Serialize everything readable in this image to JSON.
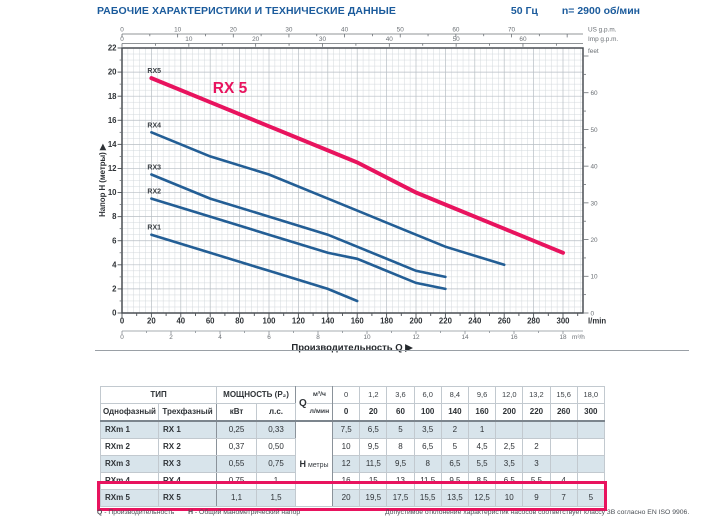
{
  "page": {
    "title": "РАБОЧИЕ ХАРАКТЕРИСТИКИ И ТЕХНИЧЕСКИЕ ДАННЫЕ",
    "frequency": "50 Гц",
    "speed": "n= 2900 об/мин"
  },
  "colors": {
    "accent_pink": "#e8135e",
    "curve_blue": "#235e95",
    "title_blue": "#1b5b9c",
    "row_shade": "#d8e4eb"
  },
  "chart_data": {
    "type": "line",
    "highlight_title": "RX 5",
    "xlabel": "Производительность Q",
    "ylabel": "Напор H (метры)",
    "x_range_lmin": [
      0,
      313
    ],
    "y_range_m": [
      0,
      22
    ],
    "grid": "on",
    "axes": {
      "lmin": {
        "unit": "l/min",
        "ticks": [
          0,
          20,
          40,
          60,
          80,
          100,
          120,
          140,
          160,
          180,
          200,
          220,
          240,
          260,
          280,
          300
        ]
      },
      "m3h": {
        "unit": "m³/h",
        "ticks": [
          0,
          2,
          4,
          6,
          8,
          10,
          12,
          14,
          16,
          18
        ]
      },
      "us_gpm": {
        "unit": "US g.p.m.",
        "ticks": [
          0,
          10,
          20,
          30,
          40,
          50,
          60,
          70
        ]
      },
      "imp_gpm": {
        "unit": "Imp g.p.m.",
        "ticks": [
          0,
          10,
          20,
          30,
          40,
          50,
          60
        ]
      },
      "meters": {
        "ticks": [
          0,
          2,
          4,
          6,
          8,
          10,
          12,
          14,
          16,
          18,
          20,
          22
        ]
      },
      "feet": {
        "unit": "feet",
        "ticks": [
          0,
          10,
          20,
          30,
          40,
          50,
          60
        ]
      }
    },
    "series": [
      {
        "name": "RX1",
        "color": "#235e95",
        "highlighted": false,
        "x": [
          20,
          60,
          100,
          140,
          160
        ],
        "y": [
          6.5,
          5,
          3.5,
          2,
          1
        ]
      },
      {
        "name": "RX2",
        "color": "#235e95",
        "highlighted": false,
        "x": [
          20,
          60,
          100,
          140,
          160,
          200,
          220
        ],
        "y": [
          9.5,
          8,
          6.5,
          5,
          4.5,
          2.5,
          2
        ]
      },
      {
        "name": "RX3",
        "color": "#235e95",
        "highlighted": false,
        "x": [
          20,
          60,
          100,
          140,
          160,
          200,
          220
        ],
        "y": [
          11.5,
          9.5,
          8,
          6.5,
          5.5,
          3.5,
          3
        ]
      },
      {
        "name": "RX4",
        "color": "#235e95",
        "highlighted": false,
        "x": [
          20,
          60,
          100,
          140,
          160,
          200,
          220,
          260
        ],
        "y": [
          15,
          13,
          11.5,
          9.5,
          8.5,
          6.5,
          5.5,
          4
        ]
      },
      {
        "name": "RX5",
        "color": "#e8135e",
        "highlighted": true,
        "x": [
          20,
          60,
          100,
          140,
          160,
          200,
          220,
          260,
          300
        ],
        "y": [
          19.5,
          17.5,
          15.5,
          13.5,
          12.5,
          10,
          9,
          7,
          5
        ]
      }
    ]
  },
  "table": {
    "header": {
      "type_label": "ТИП",
      "single_phase": "Однофазный",
      "three_phase": "Трехфазный",
      "power_label": "МОЩНОСТЬ (P₂)",
      "kw": "кВт",
      "hp": "л.с.",
      "q_label": "Q",
      "m3h_label": "м³/ч",
      "lmin_label": "л/мин",
      "h_label": "H",
      "h_unit": "метры",
      "m3h_values": [
        "0",
        "1,2",
        "3,6",
        "6,0",
        "8,4",
        "9,6",
        "12,0",
        "13,2",
        "15,6",
        "18,0"
      ],
      "lmin_values": [
        "0",
        "20",
        "60",
        "100",
        "140",
        "160",
        "200",
        "220",
        "260",
        "300"
      ]
    },
    "rows": [
      {
        "single": "RXm 1",
        "three": "RX 1",
        "kw": "0,25",
        "hp": "0,33",
        "highlighted": false,
        "h": [
          "7,5",
          "6,5",
          "5",
          "3,5",
          "2",
          "1",
          "",
          "",
          "",
          ""
        ]
      },
      {
        "single": "RXm 2",
        "three": "RX 2",
        "kw": "0,37",
        "hp": "0,50",
        "highlighted": false,
        "h": [
          "10",
          "9,5",
          "8",
          "6,5",
          "5",
          "4,5",
          "2,5",
          "2",
          "",
          ""
        ]
      },
      {
        "single": "RXm 3",
        "three": "RX 3",
        "kw": "0,55",
        "hp": "0,75",
        "highlighted": false,
        "h": [
          "12",
          "11,5",
          "9,5",
          "8",
          "6,5",
          "5,5",
          "3,5",
          "3",
          "",
          ""
        ]
      },
      {
        "single": "RXm 4",
        "three": "RX 4",
        "kw": "0,75",
        "hp": "1",
        "highlighted": false,
        "h": [
          "16",
          "15",
          "13",
          "11,5",
          "9,5",
          "8,5",
          "6,5",
          "5,5",
          "4",
          ""
        ]
      },
      {
        "single": "RXm 5",
        "three": "RX 5",
        "kw": "1,1",
        "hp": "1,5",
        "highlighted": true,
        "h": [
          "20",
          "19,5",
          "17,5",
          "15,5",
          "13,5",
          "12,5",
          "10",
          "9",
          "7",
          "5"
        ]
      }
    ]
  },
  "footer": {
    "q_label": "Q",
    "q_text": "- Производительность",
    "h_label": "H",
    "h_text": "- Общий манометрический напор",
    "tolerance_note": "Допустимое отклонение характеристик насосов соответствует классу 3B согласно EN ISO 9906."
  }
}
